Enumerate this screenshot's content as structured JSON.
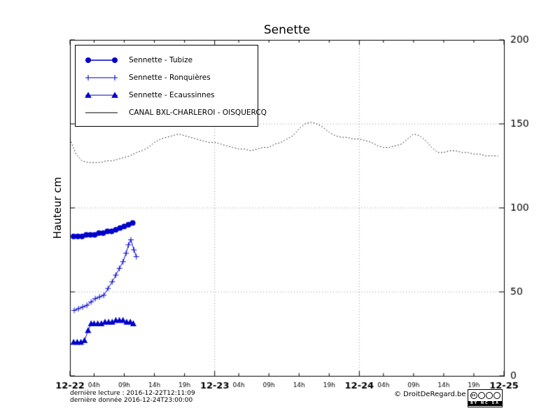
{
  "footer": {
    "line1": "dernière lecture : 2016-12-22T12:11:09",
    "line2": "dernière donnée  2016-12-24T23:00:00",
    "copyright": "© DroitDeRegard.be"
  },
  "badge": {
    "cc": "cc",
    "labels": "BY NC SA"
  },
  "chart_data": {
    "type": "line",
    "title": "Senette",
    "ylabel": "Hauteur cm",
    "ylim": [
      0,
      200
    ],
    "xlim_hours": [
      0,
      72
    ],
    "grid": true,
    "legend_position": "top-left",
    "y_ticks": [
      0,
      50,
      100,
      150,
      200
    ],
    "x_major_ticks": [
      {
        "h": 0,
        "label": "12-22"
      },
      {
        "h": 24,
        "label": "12-23"
      },
      {
        "h": 48,
        "label": "12-24"
      },
      {
        "h": 72,
        "label": "12-25"
      }
    ],
    "x_minor_ticks": [
      {
        "h": 4,
        "label": "04h"
      },
      {
        "h": 9,
        "label": "09h"
      },
      {
        "h": 14,
        "label": "14h"
      },
      {
        "h": 19,
        "label": "19h"
      },
      {
        "h": 28,
        "label": "04h"
      },
      {
        "h": 33,
        "label": "09h"
      },
      {
        "h": 38,
        "label": "14h"
      },
      {
        "h": 43,
        "label": "19h"
      },
      {
        "h": 52,
        "label": "04h"
      },
      {
        "h": 57,
        "label": "09h"
      },
      {
        "h": 62,
        "label": "14h"
      },
      {
        "h": 67,
        "label": "19h"
      }
    ],
    "series": [
      {
        "name": "Sennette - Tubize",
        "color": "#0000cc",
        "marker": "circle",
        "line": "solid",
        "x": [
          0.6,
          1.3,
          2.0,
          2.7,
          3.4,
          4.1,
          4.8,
          5.5,
          6.2,
          6.9,
          7.6,
          8.3,
          9.0,
          9.7,
          10.4
        ],
        "y": [
          83,
          83,
          83,
          84,
          84,
          84,
          85,
          85,
          86,
          86,
          87,
          88,
          89,
          90,
          91
        ]
      },
      {
        "name": "Sennette - Ronquières",
        "color": "#0000cc",
        "marker": "plus",
        "line": "solid",
        "x": [
          0.7,
          1.4,
          2.1,
          2.8,
          3.5,
          4.2,
          4.9,
          5.6,
          6.3,
          7.0,
          7.6,
          8.2,
          8.8,
          9.3,
          9.7,
          10.1,
          10.6,
          11.0
        ],
        "y": [
          39,
          40,
          41,
          42,
          44,
          46,
          47,
          48,
          52,
          56,
          60,
          64,
          68,
          73,
          78,
          81,
          75,
          71
        ]
      },
      {
        "name": "Sennette - Ecaussinnes",
        "color": "#0000cc",
        "marker": "triangle",
        "line": "solid",
        "x": [
          0.6,
          1.2,
          1.8,
          2.4,
          3.0,
          3.5,
          4.0,
          4.6,
          5.2,
          5.8,
          6.4,
          7.0,
          7.6,
          8.2,
          8.8,
          9.4,
          10.0,
          10.5
        ],
        "y": [
          20,
          20,
          20,
          21,
          27,
          31,
          31,
          31,
          31,
          32,
          32,
          32,
          33,
          33,
          33,
          32,
          32,
          31
        ]
      },
      {
        "name": "CANAL BXL-CHARLEROI - OISQUERCQ",
        "color": "#000000",
        "marker": "none",
        "line": "dotted",
        "x": [
          0,
          1,
          2,
          3,
          4,
          5,
          6,
          7,
          8,
          9,
          10,
          11,
          12,
          13,
          14,
          15,
          16,
          17,
          18,
          19,
          20,
          21,
          22,
          23,
          24,
          25,
          26,
          27,
          28,
          29,
          30,
          31,
          32,
          33,
          34,
          35,
          36,
          37,
          38,
          39,
          40,
          41,
          42,
          43,
          44,
          45,
          46,
          47,
          48,
          49,
          50,
          51,
          52,
          53,
          54,
          55,
          56,
          57,
          58,
          59,
          60,
          61,
          62,
          63,
          64,
          65,
          66,
          67,
          68,
          69,
          70,
          71
        ],
        "y": [
          141,
          132,
          128,
          127,
          127,
          127,
          128,
          128,
          129,
          130,
          131,
          133,
          134,
          136,
          139,
          141,
          142,
          143,
          144,
          143,
          142,
          141,
          140,
          139,
          139,
          138,
          137,
          136,
          135,
          135,
          134,
          135,
          136,
          136,
          138,
          139,
          141,
          143,
          147,
          150,
          151,
          150,
          148,
          145,
          143,
          142,
          142,
          141,
          141,
          140,
          139,
          137,
          136,
          136,
          137,
          138,
          141,
          144,
          143,
          140,
          136,
          133,
          133,
          134,
          134,
          133,
          133,
          132,
          132,
          131,
          131,
          131
        ]
      }
    ]
  }
}
